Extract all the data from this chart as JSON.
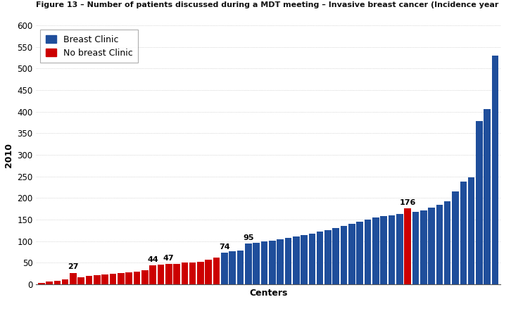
{
  "title": "Figure 13 – Number of patients discussed during a MDT meeting – Invasive breast cancer (Incidence year",
  "xlabel": "Centers",
  "ylabel": "2010",
  "ylim": [
    0,
    600
  ],
  "yticks": [
    0,
    50,
    100,
    150,
    200,
    250,
    300,
    350,
    400,
    450,
    500,
    550,
    600
  ],
  "legend_labels": [
    "Breast Clinic",
    "No breast Clinic"
  ],
  "bar_color_blue": "#1F4E9B",
  "bar_color_red": "#CC0000",
  "bar_values": [
    3,
    7,
    9,
    11,
    27,
    17,
    19,
    21,
    23,
    24,
    26,
    28,
    30,
    32,
    44,
    45,
    47,
    48,
    50,
    51,
    53,
    57,
    62,
    74,
    76,
    78,
    95,
    97,
    100,
    102,
    105,
    108,
    111,
    115,
    118,
    122,
    126,
    130,
    135,
    140,
    145,
    150,
    155,
    158,
    160,
    163,
    176,
    168,
    172,
    178,
    185,
    193,
    215,
    238,
    248,
    378,
    406,
    530
  ],
  "bar_types": [
    "red",
    "red",
    "red",
    "red",
    "red",
    "red",
    "red",
    "red",
    "red",
    "red",
    "red",
    "red",
    "red",
    "red",
    "red",
    "red",
    "red",
    "red",
    "red",
    "red",
    "red",
    "red",
    "red",
    "blue",
    "blue",
    "blue",
    "blue",
    "blue",
    "blue",
    "blue",
    "blue",
    "blue",
    "blue",
    "blue",
    "blue",
    "blue",
    "blue",
    "blue",
    "blue",
    "blue",
    "blue",
    "blue",
    "blue",
    "blue",
    "blue",
    "blue",
    "red",
    "blue",
    "blue",
    "blue",
    "blue",
    "blue",
    "blue",
    "blue",
    "blue",
    "blue",
    "blue",
    "blue"
  ],
  "annotations": [
    {
      "text": "27",
      "bar_index": 4
    },
    {
      "text": "44",
      "bar_index": 14
    },
    {
      "text": "47",
      "bar_index": 16
    },
    {
      "text": "74",
      "bar_index": 23
    },
    {
      "text": "95",
      "bar_index": 26
    },
    {
      "text": "176",
      "bar_index": 46
    }
  ],
  "grid_color": "#BBBBBB",
  "background_color": "#FFFFFF",
  "title_fontsize": 8.0,
  "axis_fontsize": 9,
  "annotation_fontsize": 8
}
